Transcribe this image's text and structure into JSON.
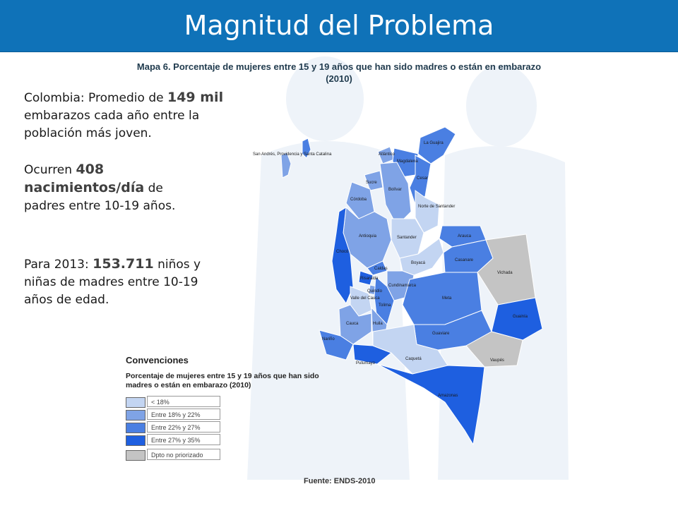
{
  "slide": {
    "title": "Magnitud del Problema"
  },
  "map": {
    "title_line1": "Mapa 6. Porcentaje de mujeres entre 15 y 19 años que han sido madres o están en embarazo",
    "title_line2": "(2010)",
    "source": "Fuente: ENDS-2010",
    "island_label": "San Andrés, Providencia y Santa Catalina",
    "departments": {
      "guajira": "La Guajira",
      "atlantico": "Atlántico",
      "magdalena": "Magdalena",
      "cesar": "Cesar",
      "sucre": "Sucre",
      "bolivar": "Bolívar",
      "cordoba": "Córdoba",
      "nsantander": "Norte de Santander",
      "antioquia": "Antioquia",
      "santander": "Santander",
      "arauca": "Arauca",
      "choco": "Chocó",
      "boyaca": "Boyacá",
      "casanare": "Casanare",
      "caldas": "Caldas",
      "cundinamarca": "Cundinamarca",
      "vichada": "Vichada",
      "risaralda": "Risaralda",
      "quindio": "Quindío",
      "tolima": "Tolima",
      "valle": "Valle del Cauca",
      "meta": "Meta",
      "guainia": "Guainía",
      "cauca": "Cauca",
      "huila": "Huila",
      "guaviare": "Guaviare",
      "narino": "Nariño",
      "vaupes": "Vaupés",
      "putumayo": "Putumayo",
      "caqueta": "Caquetá",
      "amazonas": "Amazonas"
    }
  },
  "stats": {
    "s1": {
      "pre": "Colombia: Promedio de ",
      "bold": "149 mil",
      "post": " embarazos cada año entre la población más joven."
    },
    "s2": {
      "pre": "Ocurren ",
      "bold1": "408",
      "bold2": "nacimientos/día",
      "post": " de padres entre 10-19 años."
    },
    "s3": {
      "pre": "Para 2013: ",
      "bold": "153.711",
      "post": " niños y niñas de madres entre 10-19 años de edad."
    }
  },
  "legend": {
    "title": "Convenciones",
    "subtitle": "Porcentaje de mujeres entre 15 y 19 años que han sido madres o están en embarazo (2010)",
    "items": [
      {
        "label": "< 18%",
        "color": "#c3d5f2"
      },
      {
        "label": "Entre 18% y 22%",
        "color": "#7fa3e6"
      },
      {
        "label": "Entre 22% y 27%",
        "color": "#4a7fe2"
      },
      {
        "label": "Entre 27% y 35%",
        "color": "#1e5fe0"
      },
      {
        "label": "Dpto no priorizado",
        "color": "#c4c4c4"
      }
    ]
  }
}
